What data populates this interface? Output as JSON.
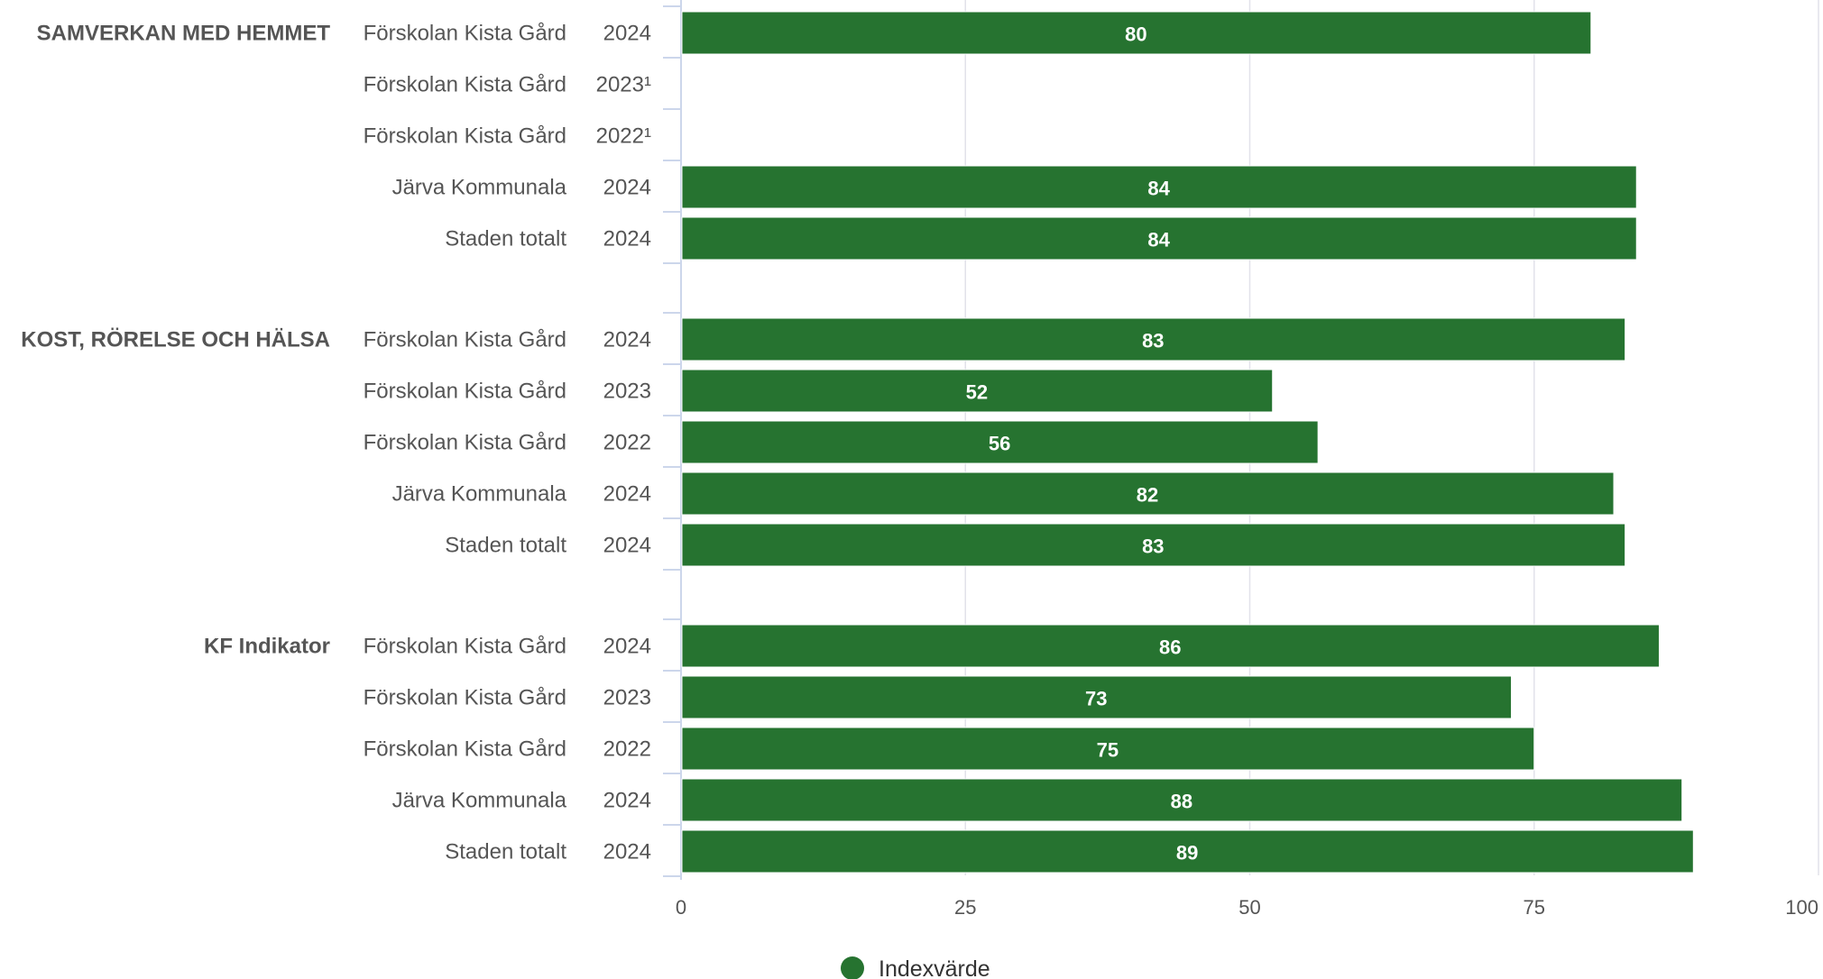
{
  "chart_data": {
    "type": "bar",
    "orientation": "horizontal",
    "xlim": [
      0,
      100
    ],
    "xticks": [
      0,
      25,
      50,
      75,
      100
    ],
    "grid": true,
    "legend_position": "bottom",
    "series_color": "#267330",
    "groups": [
      {
        "name": "SAMVERKAN MED HEMMET",
        "rows": [
          {
            "label": "Förskolan Kista Gård",
            "year": "2024",
            "value": 80
          },
          {
            "label": "Förskolan Kista Gård",
            "year": "2023¹",
            "value": null
          },
          {
            "label": "Förskolan Kista Gård",
            "year": "2022¹",
            "value": null
          },
          {
            "label": "Järva Kommunala",
            "year": "2024",
            "value": 84
          },
          {
            "label": "Staden totalt",
            "year": "2024",
            "value": 84
          }
        ]
      },
      {
        "name": "KOST, RÖRELSE OCH HÄLSA",
        "rows": [
          {
            "label": "Förskolan Kista Gård",
            "year": "2024",
            "value": 83
          },
          {
            "label": "Förskolan Kista Gård",
            "year": "2023",
            "value": 52
          },
          {
            "label": "Förskolan Kista Gård",
            "year": "2022",
            "value": 56
          },
          {
            "label": "Järva Kommunala",
            "year": "2024",
            "value": 82
          },
          {
            "label": "Staden totalt",
            "year": "2024",
            "value": 83
          }
        ]
      },
      {
        "name": "KF Indikator",
        "rows": [
          {
            "label": "Förskolan Kista Gård",
            "year": "2024",
            "value": 86
          },
          {
            "label": "Förskolan Kista Gård",
            "year": "2023",
            "value": 73
          },
          {
            "label": "Förskolan Kista Gård",
            "year": "2022",
            "value": 75
          },
          {
            "label": "Järva Kommunala",
            "year": "2024",
            "value": 88
          },
          {
            "label": "Staden totalt",
            "year": "2024",
            "value": 89
          }
        ]
      }
    ],
    "series": [
      {
        "name": "Indexvärde"
      }
    ]
  }
}
